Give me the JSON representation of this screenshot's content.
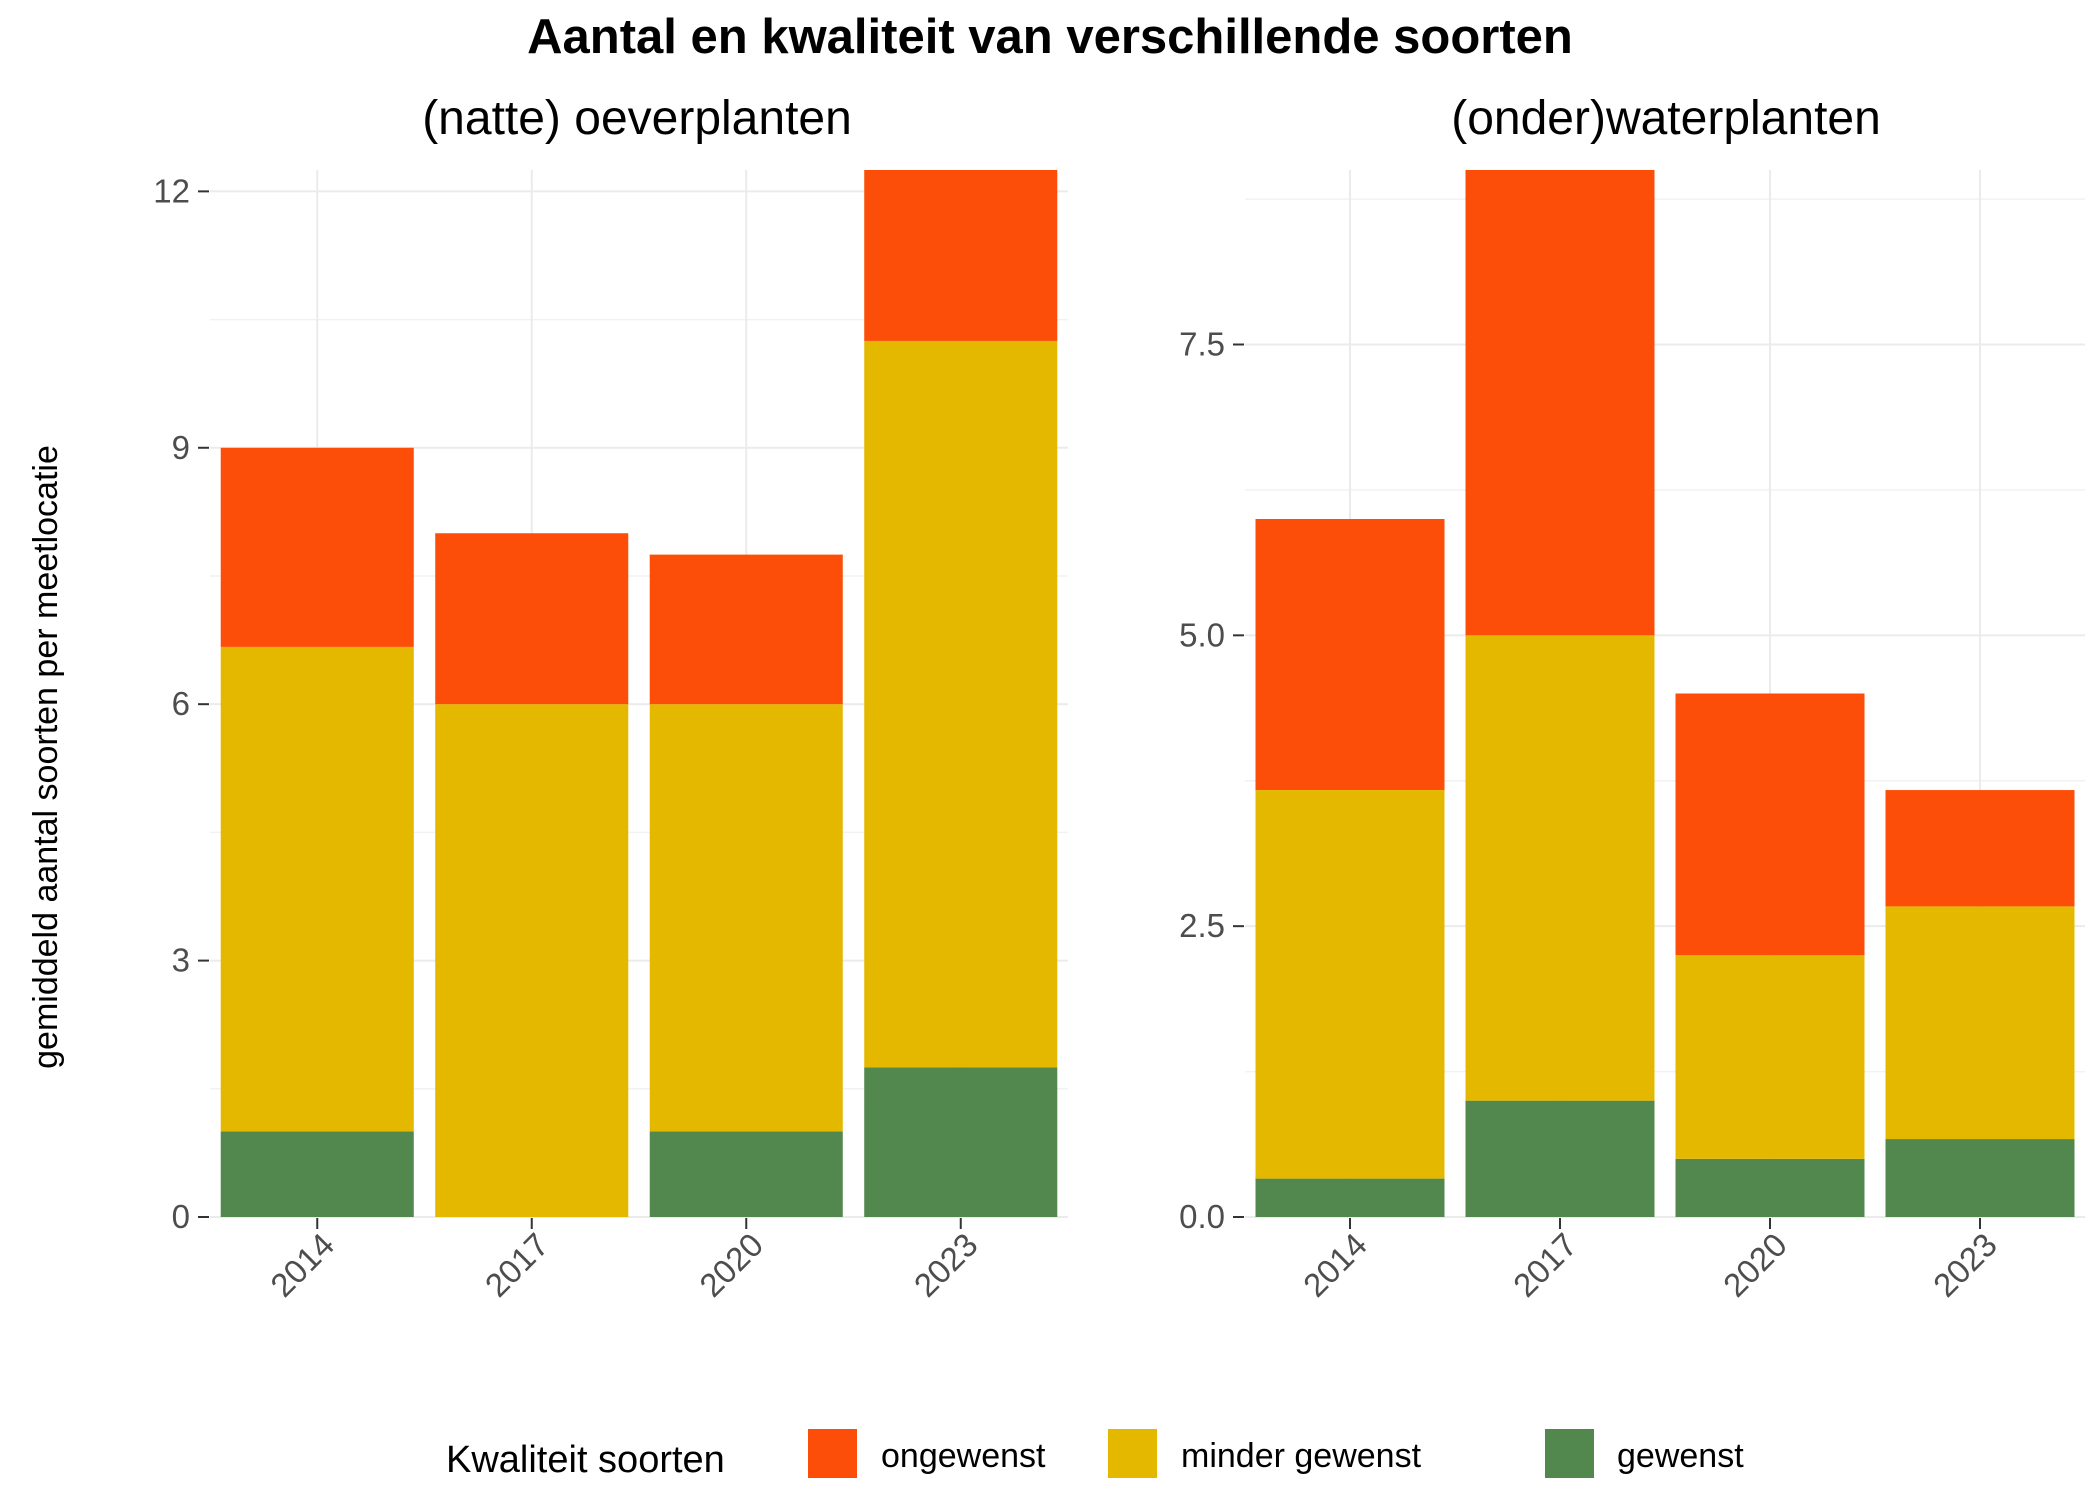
{
  "chart_data": {
    "title": "Aantal en kwaliteit van verschillende soorten",
    "ylabel": "gemiddeld aantal soorten per meetlocatie",
    "legend": {
      "title": "Kwaliteit soorten",
      "position": "bottom",
      "entries": [
        {
          "name": "ongewenst",
          "color": "#fc4e08"
        },
        {
          "name": "minder gewenst",
          "color": "#e5b800"
        },
        {
          "name": "gewenst",
          "color": "#52874d"
        }
      ]
    },
    "panels": [
      {
        "type": "bar",
        "stacked": true,
        "title": "(natte) oeverplanten",
        "categories": [
          "2014",
          "2017",
          "2020",
          "2023"
        ],
        "ylim": [
          0,
          12.25
        ],
        "yticks": [
          0,
          3,
          6,
          9,
          12
        ],
        "ytick_labels": [
          "0",
          "3",
          "6",
          "9",
          "12"
        ],
        "series": [
          {
            "name": "gewenst",
            "values": [
              1.0,
              0.0,
              1.0,
              1.75
            ]
          },
          {
            "name": "minder gewenst",
            "values": [
              5.67,
              6.0,
              5.0,
              8.5
            ]
          },
          {
            "name": "ongewenst",
            "values": [
              2.33,
              2.0,
              1.75,
              2.0
            ]
          }
        ]
      },
      {
        "type": "bar",
        "stacked": true,
        "title": "(onder)waterplanten",
        "categories": [
          "2014",
          "2017",
          "2020",
          "2023"
        ],
        "ylim": [
          0,
          9.0
        ],
        "yticks": [
          0,
          2.5,
          5.0,
          7.5
        ],
        "ytick_labels": [
          "0.0",
          "2.5",
          "5.0",
          "7.5"
        ],
        "series": [
          {
            "name": "gewenst",
            "values": [
              0.33,
              1.0,
              0.5,
              0.67
            ]
          },
          {
            "name": "minder gewenst",
            "values": [
              3.34,
              4.0,
              1.75,
              2.0
            ]
          },
          {
            "name": "ongewenst",
            "values": [
              2.33,
              4.0,
              2.25,
              1.0
            ]
          }
        ]
      }
    ],
    "grid": true
  }
}
